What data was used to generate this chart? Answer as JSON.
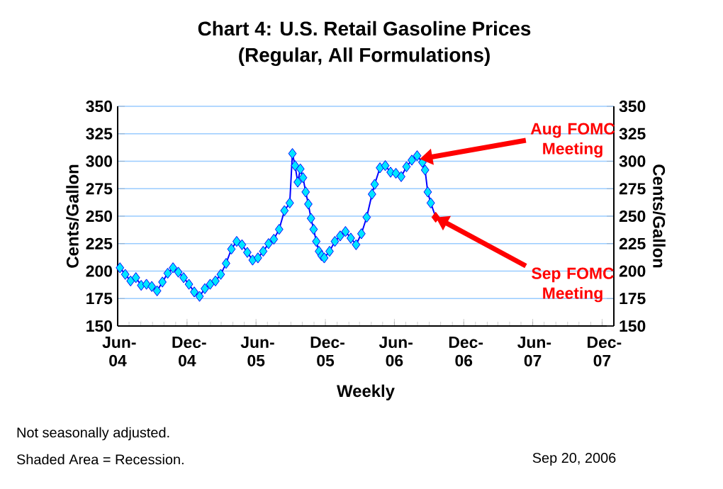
{
  "chart_data": {
    "type": "line",
    "title": "Chart 4: U.S. Retail Gasoline Prices",
    "subtitle": "(Regular, All Formulations)",
    "xlabel": "Weekly",
    "ylabel": "Cents/Gallon",
    "y2label": "Cents/Gallon",
    "xlim": [
      "2004-06-01",
      "2008-01-01"
    ],
    "xticks": [
      {
        "value": "2004-06-01",
        "label": "Jun-04"
      },
      {
        "value": "2004-12-01",
        "label": "Dec-04"
      },
      {
        "value": "2005-06-01",
        "label": "Jun-05"
      },
      {
        "value": "2005-12-01",
        "label": "Dec-05"
      },
      {
        "value": "2006-06-01",
        "label": "Jun-06"
      },
      {
        "value": "2006-12-01",
        "label": "Dec-06"
      },
      {
        "value": "2007-06-01",
        "label": "Jun-07"
      },
      {
        "value": "2007-12-01",
        "label": "Dec-07"
      }
    ],
    "ylim": [
      150,
      350
    ],
    "yticks": [
      150,
      175,
      200,
      225,
      250,
      275,
      300,
      325,
      350
    ],
    "y2lim": [
      150,
      350
    ],
    "y2ticks": [
      150,
      175,
      200,
      225,
      250,
      275,
      300,
      325,
      350
    ],
    "grid": "y",
    "legend": false,
    "marker": "diamond",
    "line_style": "solid",
    "series": [
      {
        "color": "#0000ff",
        "x": [
          "2004-06-07",
          "2004-06-21",
          "2004-07-05",
          "2004-07-19",
          "2004-08-02",
          "2004-08-16",
          "2004-08-30",
          "2004-09-13",
          "2004-09-27",
          "2004-10-11",
          "2004-10-25",
          "2004-11-08",
          "2004-11-22",
          "2004-12-06",
          "2004-12-20",
          "2005-01-03",
          "2005-01-17",
          "2005-01-31",
          "2005-02-14",
          "2005-02-28",
          "2005-03-14",
          "2005-03-28",
          "2005-04-11",
          "2005-04-25",
          "2005-05-09",
          "2005-05-23",
          "2005-06-06",
          "2005-06-20",
          "2005-07-04",
          "2005-07-18",
          "2005-08-01",
          "2005-08-15",
          "2005-08-29",
          "2005-09-05",
          "2005-09-12",
          "2005-09-19",
          "2005-09-26",
          "2005-10-03",
          "2005-10-10",
          "2005-10-17",
          "2005-10-24",
          "2005-10-31",
          "2005-11-07",
          "2005-11-14",
          "2005-11-21",
          "2005-11-28",
          "2005-12-12",
          "2005-12-26",
          "2006-01-09",
          "2006-01-23",
          "2006-02-06",
          "2006-02-20",
          "2006-03-06",
          "2006-03-20",
          "2006-04-03",
          "2006-04-10",
          "2006-04-24",
          "2006-05-08",
          "2006-05-22",
          "2006-06-05",
          "2006-06-19",
          "2006-07-03",
          "2006-07-17",
          "2006-07-31",
          "2006-08-14",
          "2006-08-21",
          "2006-08-28",
          "2006-09-05",
          "2006-09-18"
        ],
        "values": [
          203,
          197,
          191,
          194,
          187,
          188,
          186,
          182,
          190,
          198,
          203,
          199,
          194,
          188,
          181,
          177,
          184,
          188,
          191,
          197,
          207,
          220,
          227,
          224,
          217,
          210,
          212,
          218,
          225,
          229,
          238,
          255,
          262,
          307,
          296,
          281,
          293,
          285,
          272,
          261,
          248,
          238,
          227,
          218,
          214,
          212,
          218,
          227,
          232,
          236,
          230,
          224,
          234,
          249,
          270,
          279,
          294,
          296,
          290,
          289,
          286,
          295,
          301,
          305,
          299,
          292,
          272,
          262,
          249
        ],
        "colors": [
          "#00e5ff",
          "#00e5ff",
          "#00e5ff",
          "#00e5ff",
          "#00e5ff",
          "#00e5ff",
          "#00e5ff",
          "#00e5ff",
          "#00e5ff",
          "#00e5ff",
          "#00e5ff",
          "#00e5ff",
          "#00e5ff",
          "#00e5ff",
          "#00e5ff",
          "#00e5ff",
          "#00e5ff",
          "#00e5ff",
          "#00e5ff",
          "#00e5ff",
          "#00e5ff",
          "#00e5ff",
          "#00e5ff",
          "#00e5ff",
          "#00e5ff",
          "#00e5ff",
          "#00e5ff",
          "#00e5ff",
          "#00e5ff",
          "#00e5ff",
          "#00e5ff",
          "#00e5ff",
          "#00e5ff",
          "#00e5ff",
          "#00e5ff",
          "#00e5ff",
          "#00e5ff",
          "#00e5ff",
          "#00e5ff",
          "#00e5ff",
          "#00e5ff",
          "#00e5ff",
          "#00e5ff",
          "#00e5ff",
          "#00e5ff",
          "#00e5ff",
          "#00e5ff",
          "#00e5ff",
          "#00e5ff",
          "#00e5ff",
          "#00e5ff",
          "#00e5ff",
          "#00e5ff",
          "#00e5ff",
          "#00e5ff",
          "#00e5ff",
          "#00e5ff",
          "#00e5ff",
          "#00e5ff",
          "#00e5ff",
          "#00e5ff",
          "#00e5ff",
          "#00e5ff",
          "#00e5ff",
          "#00e5ff",
          "#00e5ff",
          "#00e5ff",
          "#00e5ff",
          "#ff0000"
        ]
      }
    ],
    "annotations": [
      {
        "text": "Aug FOMC Meeting",
        "x": "2006-08-07",
        "y": 302
      },
      {
        "text": "Sep FOMC Meeting",
        "x": "2006-09-18",
        "y": 249
      },
      "Not seasonally adjusted.",
      "Shaded Area = Recession.",
      "Sep 20, 2006"
    ]
  }
}
